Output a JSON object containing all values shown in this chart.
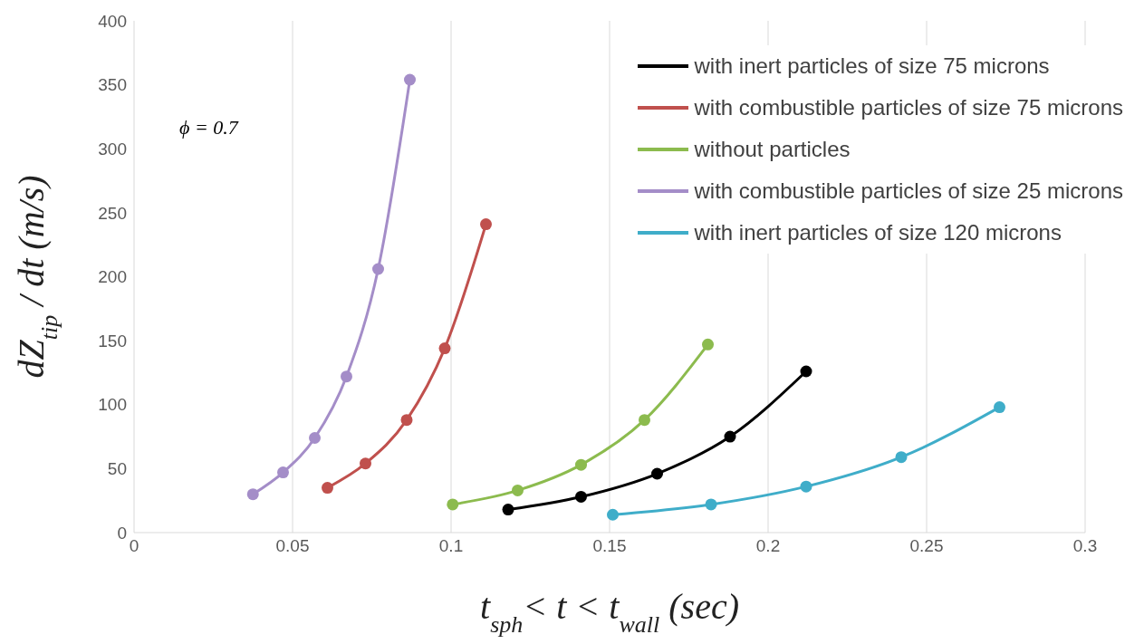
{
  "chart_data": {
    "type": "line",
    "xlabel": "t$_{sph}$< t < t$_{wall}$ (sec)",
    "ylabel": "dZ$_{tip}$ / dt (m/s)",
    "xlim": [
      0,
      0.3
    ],
    "xticks": [
      0,
      0.05,
      0.1,
      0.15,
      0.2,
      0.25,
      0.3
    ],
    "ylim": [
      0,
      400
    ],
    "yticks": [
      0,
      50,
      100,
      150,
      200,
      250,
      300,
      350,
      400
    ],
    "grid": "x",
    "legend": "top right",
    "marker": "circle",
    "line_style": "solid",
    "annotations": [
      "ϕ = 0.7"
    ],
    "series": [
      {
        "name": "with inert particles of size 75 microns",
        "color": "#000000",
        "x": [
          0.118,
          0.141,
          0.165,
          0.188,
          0.212
        ],
        "values": [
          18,
          28,
          46,
          75,
          126
        ]
      },
      {
        "name": "with combustible particles of size 75 microns",
        "color": "#c0504d",
        "x": [
          0.061,
          0.073,
          0.086,
          0.098,
          0.111
        ],
        "values": [
          35,
          54,
          88,
          144,
          241
        ]
      },
      {
        "name": "without particles",
        "color": "#8cbb4e",
        "x": [
          0.1005,
          0.121,
          0.141,
          0.161,
          0.181
        ],
        "values": [
          22,
          33,
          53,
          88,
          147
        ]
      },
      {
        "name": "with combustible particles of size 25 microns",
        "color": "#a48dc8",
        "x": [
          0.0375,
          0.047,
          0.057,
          0.067,
          0.077,
          0.087
        ],
        "values": [
          30,
          47,
          74,
          122,
          206,
          354
        ]
      },
      {
        "name": "with inert particles of size 120 microns",
        "color": "#3fadc9",
        "x": [
          0.151,
          0.182,
          0.212,
          0.242,
          0.273
        ],
        "values": [
          14,
          22,
          36,
          59,
          98
        ]
      }
    ]
  }
}
